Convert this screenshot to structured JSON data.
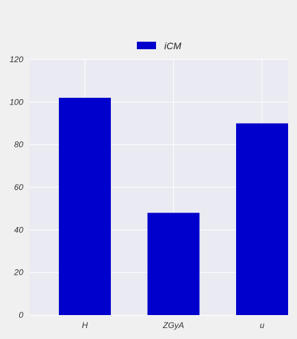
{
  "chart_data": {
    "type": "bar",
    "title": "",
    "xlabel": "",
    "ylabel": "",
    "categories": [
      "H",
      "ZGyA",
      "u"
    ],
    "series": [
      {
        "name": "iCM",
        "values": [
          102,
          48,
          90
        ],
        "color": "#0000cc"
      }
    ],
    "ylim": [
      0,
      120
    ],
    "yticks": [
      0,
      20,
      40,
      60,
      80,
      100,
      120
    ],
    "ytick_labels": [
      "0",
      "20",
      "40",
      "60",
      "80",
      "100",
      "120"
    ],
    "grid": true,
    "legend_position": "top-center",
    "background_color": "#eaeaf2",
    "grid_color": "#ffffff"
  }
}
